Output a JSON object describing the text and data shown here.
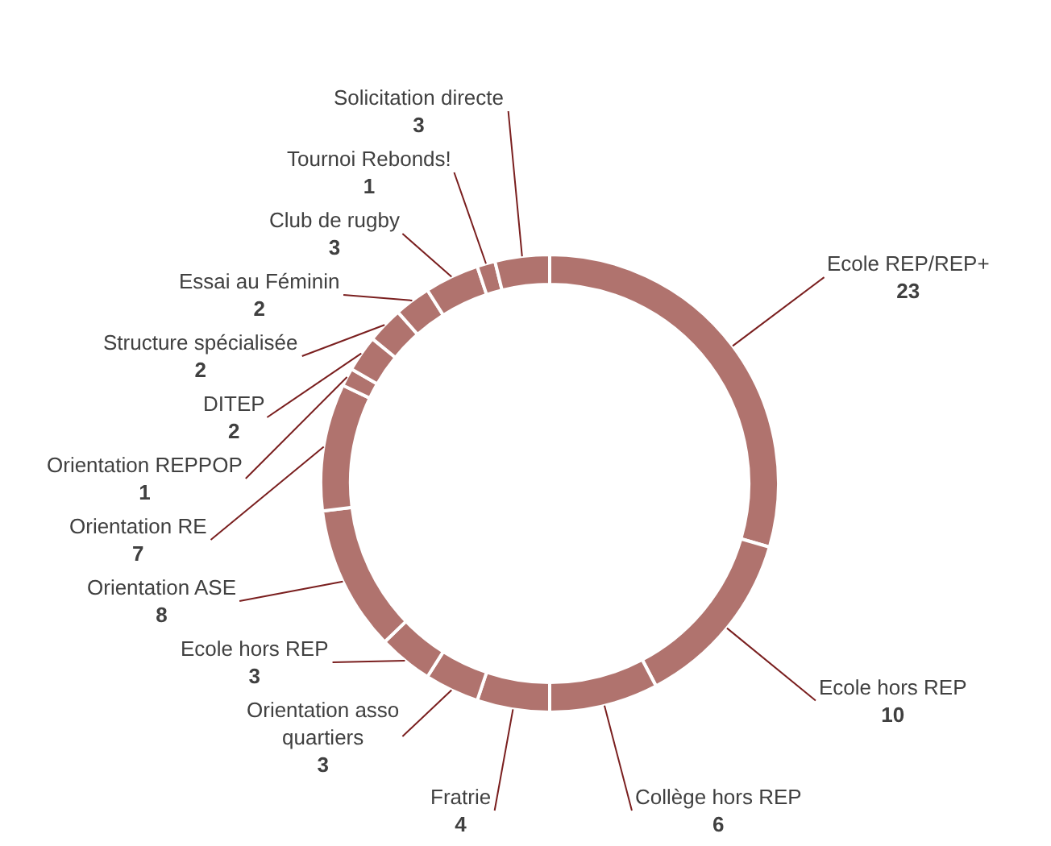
{
  "chart_data": {
    "type": "donut",
    "categories": [
      "Ecole REP/REP+",
      "Ecole hors REP",
      "Collège hors REP",
      "Fratrie",
      "Orientation asso quartiers",
      "Ecole hors REP",
      "Orientation ASE",
      "Orientation RE",
      "Orientation REPPOP",
      "DITEP",
      "Structure spécialisée",
      "Essai au Féminin",
      "Club de rugby",
      "Tournoi Rebonds!",
      "Solicitation directe"
    ],
    "values": [
      23,
      10,
      6,
      4,
      3,
      3,
      8,
      7,
      1,
      2,
      2,
      2,
      3,
      1,
      3
    ],
    "color": "#b0736e",
    "data_labels": true,
    "legend": false
  }
}
